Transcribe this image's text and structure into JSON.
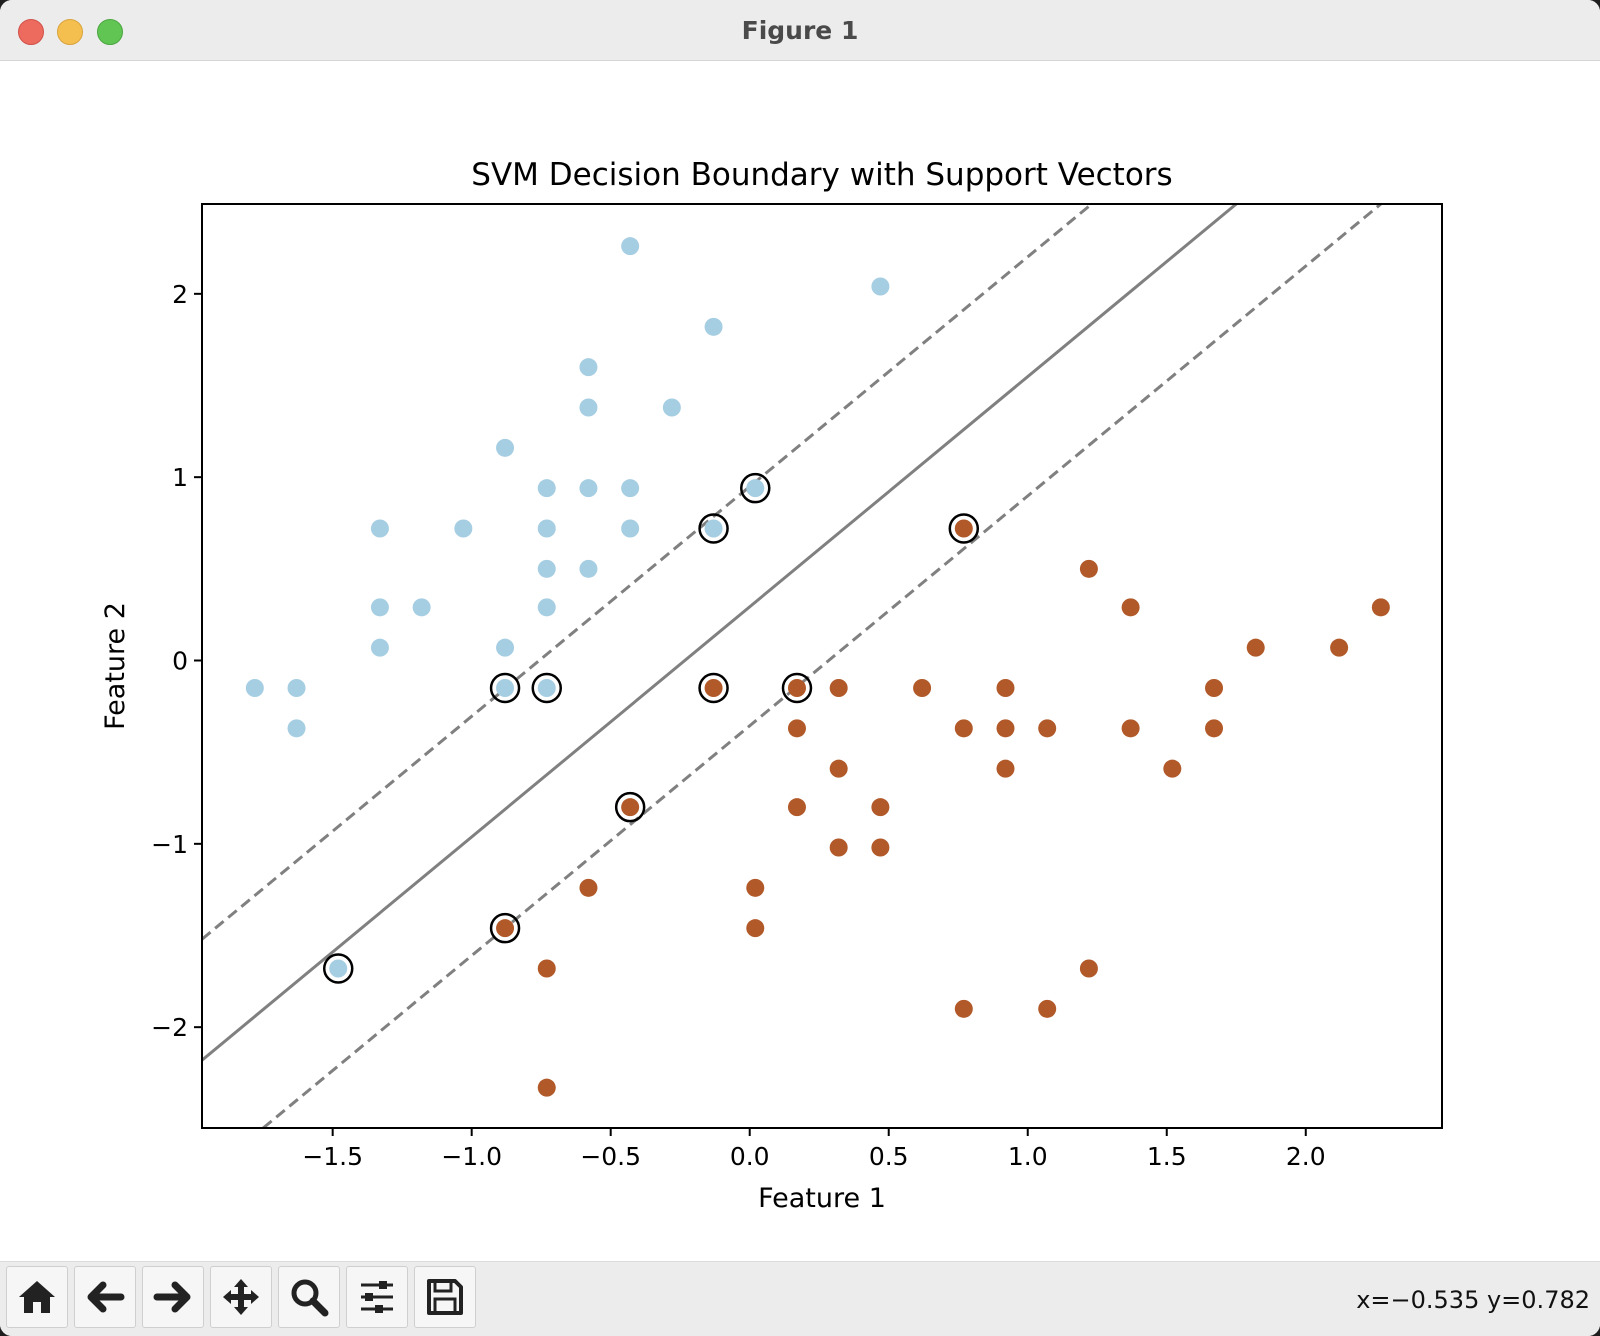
{
  "window": {
    "title": "Figure 1"
  },
  "toolbar": {
    "buttons": [
      {
        "name": "home-button",
        "icon": "home-icon"
      },
      {
        "name": "back-button",
        "icon": "arrow-left-icon"
      },
      {
        "name": "forward-button",
        "icon": "arrow-right-icon"
      },
      {
        "name": "pan-button",
        "icon": "move-icon"
      },
      {
        "name": "zoom-button",
        "icon": "magnifier-icon"
      },
      {
        "name": "configure-subplots-button",
        "icon": "sliders-icon"
      },
      {
        "name": "save-button",
        "icon": "floppy-disk-icon"
      }
    ],
    "coords": "x=−0.535 y=0.782"
  },
  "chart_data": {
    "type": "scatter",
    "title": "SVM Decision Boundary with Support Vectors",
    "xlabel": "Feature 1",
    "ylabel": "Feature 2",
    "xlim": [
      -1.97,
      2.49
    ],
    "ylim": [
      -2.55,
      2.49
    ],
    "xticks": [
      -1.5,
      -1.0,
      -0.5,
      0.0,
      0.5,
      1.0,
      1.5,
      2.0
    ],
    "xtick_labels": [
      "−1.5",
      "−1.0",
      "−0.5",
      "0.0",
      "0.5",
      "1.0",
      "1.5",
      "2.0"
    ],
    "yticks": [
      -2,
      -1,
      0,
      1,
      2
    ],
    "ytick_labels": [
      "−2",
      "−1",
      "0",
      "1",
      "2"
    ],
    "grid": false,
    "colors": {
      "class0": "#a6cee3",
      "class1": "#b15928",
      "boundary": "#808080",
      "support_ring": "#000000"
    },
    "class0_points": [
      [
        -0.43,
        2.26
      ],
      [
        0.47,
        2.04
      ],
      [
        -0.13,
        1.82
      ],
      [
        -0.58,
        1.6
      ],
      [
        -0.58,
        1.38
      ],
      [
        -0.28,
        1.38
      ],
      [
        -0.88,
        1.16
      ],
      [
        -0.73,
        0.94
      ],
      [
        -0.58,
        0.94
      ],
      [
        -0.43,
        0.94
      ],
      [
        -1.33,
        0.72
      ],
      [
        -1.03,
        0.72
      ],
      [
        -0.73,
        0.72
      ],
      [
        -0.43,
        0.72
      ],
      [
        -0.73,
        0.5
      ],
      [
        -0.58,
        0.5
      ],
      [
        -1.33,
        0.29
      ],
      [
        -1.18,
        0.29
      ],
      [
        -0.73,
        0.29
      ],
      [
        -1.33,
        0.07
      ],
      [
        -0.88,
        0.07
      ],
      [
        -1.78,
        -0.15
      ],
      [
        -1.63,
        -0.15
      ],
      [
        -1.63,
        -0.37
      ],
      [
        0.02,
        0.94
      ],
      [
        -0.13,
        0.72
      ],
      [
        -0.73,
        -0.15
      ],
      [
        -0.88,
        -0.15
      ],
      [
        -1.48,
        -1.68
      ]
    ],
    "class1_points": [
      [
        0.77,
        0.72
      ],
      [
        1.22,
        0.5
      ],
      [
        1.37,
        0.29
      ],
      [
        2.27,
        0.29
      ],
      [
        1.82,
        0.07
      ],
      [
        2.12,
        0.07
      ],
      [
        -0.13,
        -0.15
      ],
      [
        0.17,
        -0.15
      ],
      [
        0.32,
        -0.15
      ],
      [
        0.62,
        -0.15
      ],
      [
        0.92,
        -0.15
      ],
      [
        1.67,
        -0.15
      ],
      [
        0.17,
        -0.37
      ],
      [
        0.77,
        -0.37
      ],
      [
        0.92,
        -0.37
      ],
      [
        1.07,
        -0.37
      ],
      [
        1.37,
        -0.37
      ],
      [
        1.67,
        -0.37
      ],
      [
        0.32,
        -0.59
      ],
      [
        0.92,
        -0.59
      ],
      [
        1.52,
        -0.59
      ],
      [
        -0.43,
        -0.8
      ],
      [
        0.17,
        -0.8
      ],
      [
        0.47,
        -0.8
      ],
      [
        0.32,
        -1.02
      ],
      [
        0.47,
        -1.02
      ],
      [
        -0.58,
        -1.24
      ],
      [
        0.02,
        -1.24
      ],
      [
        -0.88,
        -1.46
      ],
      [
        0.02,
        -1.46
      ],
      [
        -0.73,
        -1.68
      ],
      [
        1.22,
        -1.68
      ],
      [
        0.77,
        -1.9
      ],
      [
        1.07,
        -1.9
      ],
      [
        -0.73,
        -2.33
      ]
    ],
    "support_vectors": [
      [
        0.02,
        0.94
      ],
      [
        -0.13,
        0.72
      ],
      [
        0.77,
        0.72
      ],
      [
        -0.88,
        -0.15
      ],
      [
        -0.73,
        -0.15
      ],
      [
        -0.13,
        -0.15
      ],
      [
        0.17,
        -0.15
      ],
      [
        -0.43,
        -0.8
      ],
      [
        -0.88,
        -1.46
      ],
      [
        -1.48,
        -1.68
      ]
    ],
    "decision_lines": [
      {
        "name": "decision-boundary",
        "style": "solid",
        "points": [
          [
            -1.97,
            -2.18
          ],
          [
            1.75,
            2.49
          ]
        ]
      },
      {
        "name": "upper-margin",
        "style": "dashed",
        "points": [
          [
            -1.97,
            -1.52
          ],
          [
            1.23,
            2.49
          ]
        ]
      },
      {
        "name": "lower-margin",
        "style": "dashed",
        "points": [
          [
            -1.75,
            -2.55
          ],
          [
            2.27,
            2.49
          ]
        ]
      }
    ]
  }
}
